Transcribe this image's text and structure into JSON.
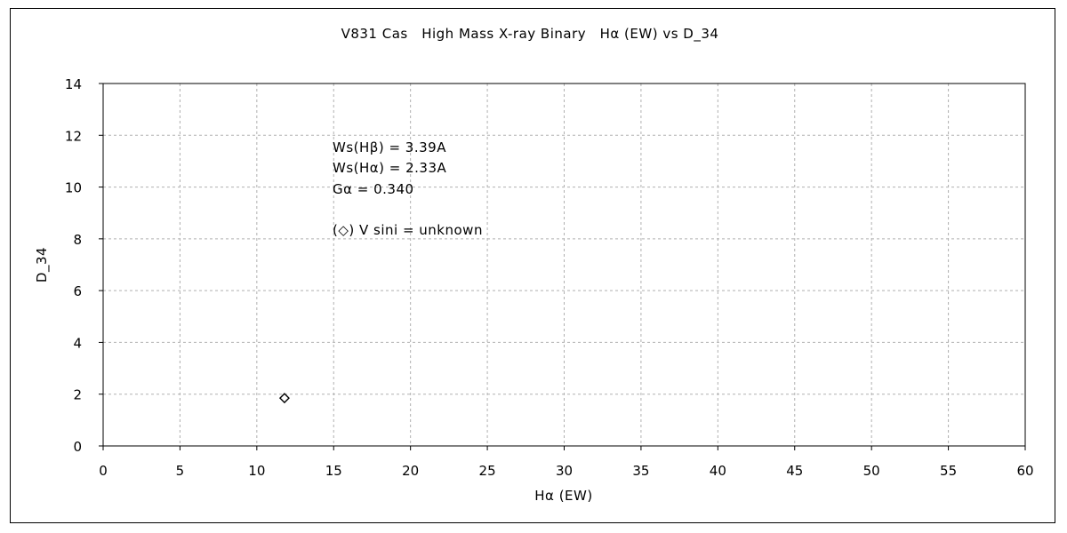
{
  "chart_data": {
    "type": "scatter",
    "title": "V831 Cas　High Mass X-ray Binary　Hα (EW)  vs  D_34",
    "xlabel": "Hα (EW)",
    "ylabel": "D_34",
    "xlim": [
      0,
      60
    ],
    "ylim": [
      0,
      14
    ],
    "x_ticks": [
      0,
      5,
      10,
      15,
      20,
      25,
      30,
      35,
      40,
      45,
      50,
      55,
      60
    ],
    "y_ticks": [
      0,
      2,
      4,
      6,
      8,
      10,
      12,
      14
    ],
    "grid": true,
    "series": [
      {
        "marker": "diamond-open",
        "points": [
          {
            "x": 11.8,
            "y": 1.85
          }
        ]
      }
    ],
    "annotations": [
      "Ws(Hβ) = 3.39A",
      "Ws(Hα) = 2.33A",
      "Gα = 0.340",
      "(◇) V sini = unknown"
    ],
    "colors": {
      "axis": "#000000",
      "grid": "#b0b0b0",
      "marker": "#000000"
    }
  }
}
